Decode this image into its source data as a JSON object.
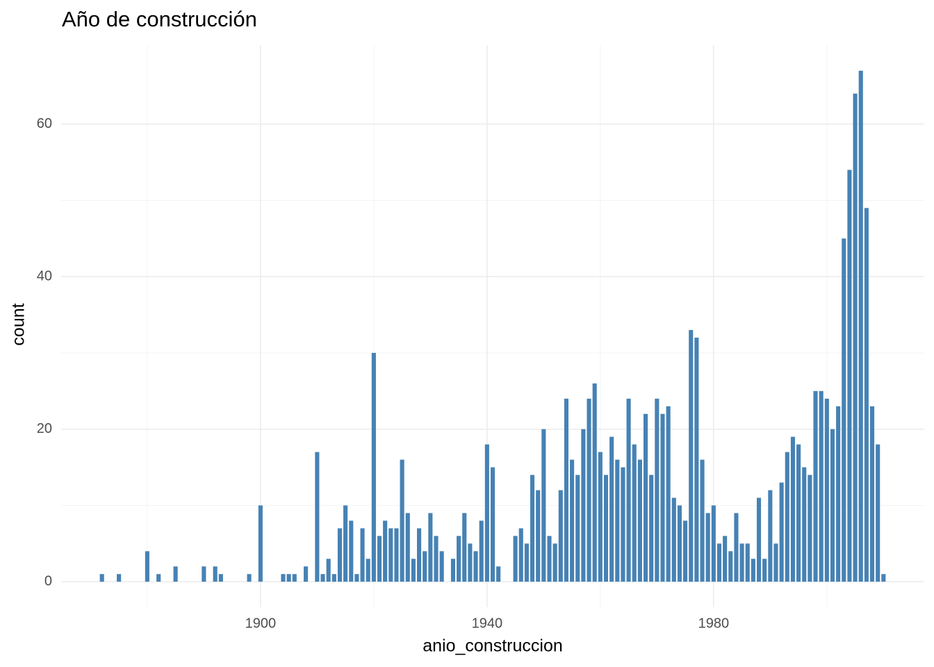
{
  "chart_data": {
    "type": "bar",
    "title": "Año de construcción",
    "x_label": "anio_construccion",
    "y_label": "count",
    "color": "#4682b4",
    "x": [
      1872,
      1875,
      1880,
      1882,
      1885,
      1890,
      1892,
      1893,
      1898,
      1900,
      1904,
      1905,
      1906,
      1908,
      1910,
      1911,
      1912,
      1913,
      1914,
      1915,
      1916,
      1917,
      1918,
      1919,
      1920,
      1921,
      1922,
      1923,
      1924,
      1925,
      1926,
      1927,
      1928,
      1929,
      1930,
      1931,
      1932,
      1934,
      1935,
      1936,
      1937,
      1938,
      1939,
      1940,
      1941,
      1942,
      1945,
      1946,
      1947,
      1948,
      1949,
      1950,
      1951,
      1952,
      1953,
      1954,
      1955,
      1956,
      1957,
      1958,
      1959,
      1960,
      1961,
      1962,
      1963,
      1964,
      1965,
      1966,
      1967,
      1968,
      1969,
      1970,
      1971,
      1972,
      1973,
      1974,
      1975,
      1976,
      1977,
      1978,
      1979,
      1980,
      1981,
      1982,
      1983,
      1984,
      1985,
      1986,
      1987,
      1988,
      1989,
      1990,
      1991,
      1992,
      1993,
      1994,
      1995,
      1996,
      1997,
      1998,
      1999,
      2000,
      2001,
      2002,
      2003,
      2004,
      2005,
      2006,
      2007,
      2008,
      2009,
      2010
    ],
    "values": [
      1,
      1,
      4,
      1,
      2,
      2,
      2,
      1,
      1,
      10,
      1,
      1,
      1,
      2,
      17,
      1,
      3,
      1,
      7,
      10,
      8,
      1,
      7,
      3,
      30,
      6,
      8,
      7,
      7,
      16,
      9,
      3,
      7,
      4,
      9,
      6,
      4,
      3,
      6,
      9,
      5,
      4,
      8,
      18,
      15,
      2,
      6,
      7,
      5,
      14,
      12,
      20,
      6,
      5,
      12,
      24,
      16,
      14,
      20,
      24,
      26,
      17,
      14,
      19,
      16,
      15,
      24,
      18,
      16,
      22,
      14,
      24,
      22,
      23,
      11,
      10,
      8,
      33,
      32,
      16,
      9,
      10,
      5,
      6,
      4,
      9,
      5,
      5,
      3,
      11,
      3,
      12,
      5,
      13,
      17,
      19,
      18,
      15,
      14,
      25,
      25,
      24,
      20,
      23,
      45,
      54,
      64,
      67,
      49,
      23,
      18,
      1
    ],
    "xlim": [
      1864.8,
      2017.2
    ],
    "ylim": [
      -3.35,
      70.35
    ],
    "xticks": [
      1900,
      1940,
      1980
    ],
    "yticks": [
      0,
      20,
      40,
      60
    ],
    "x_minor_ticks": [
      1880,
      1920,
      1960,
      2000
    ],
    "y_minor_ticks": [
      10,
      30,
      50
    ],
    "grid": true
  }
}
